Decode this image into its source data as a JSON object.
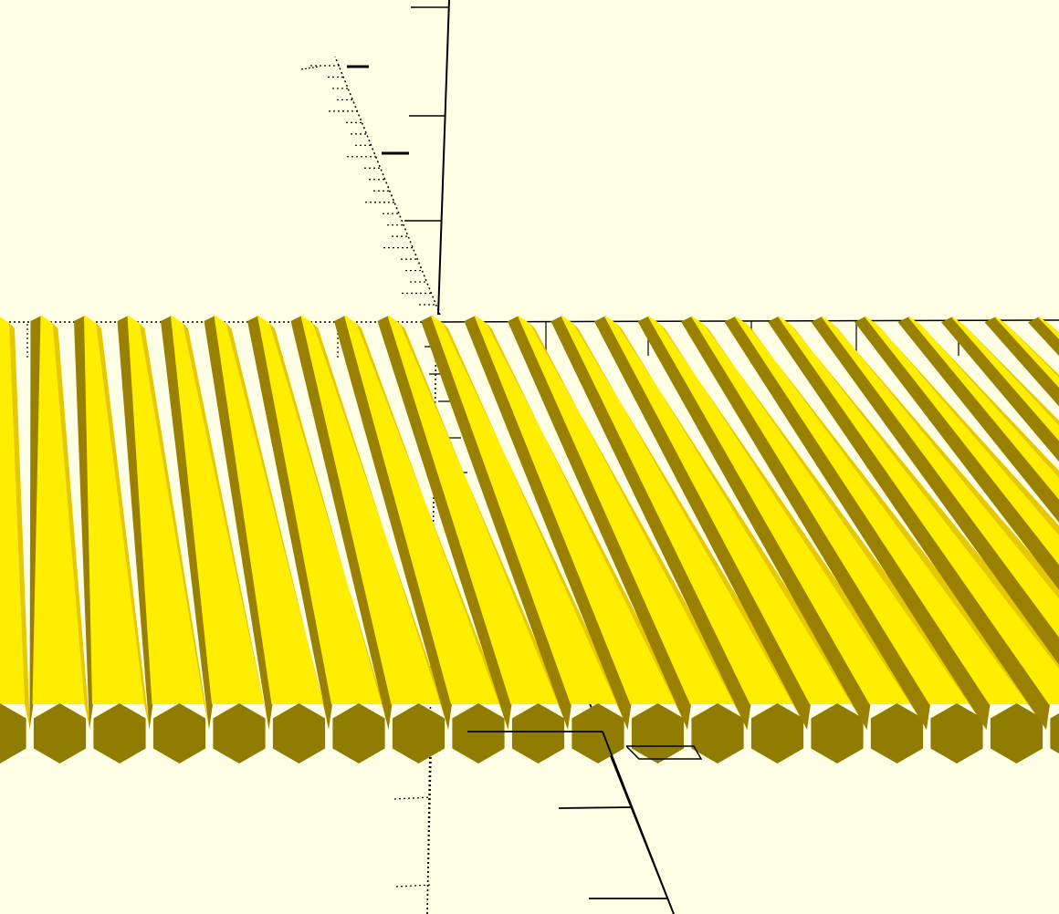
{
  "viewport": {
    "background_color": "#ffffe5",
    "axis_color": "#000000",
    "model": {
      "shape": "hexagonal-prism",
      "count_visible": 24,
      "colors": {
        "lit_face": "#ffee00",
        "mid_face": "#e6c800",
        "shadow_face": "#9a8000",
        "end_cap": "#8f7c00"
      }
    },
    "scale_markers_visible": true,
    "text_labels": []
  }
}
